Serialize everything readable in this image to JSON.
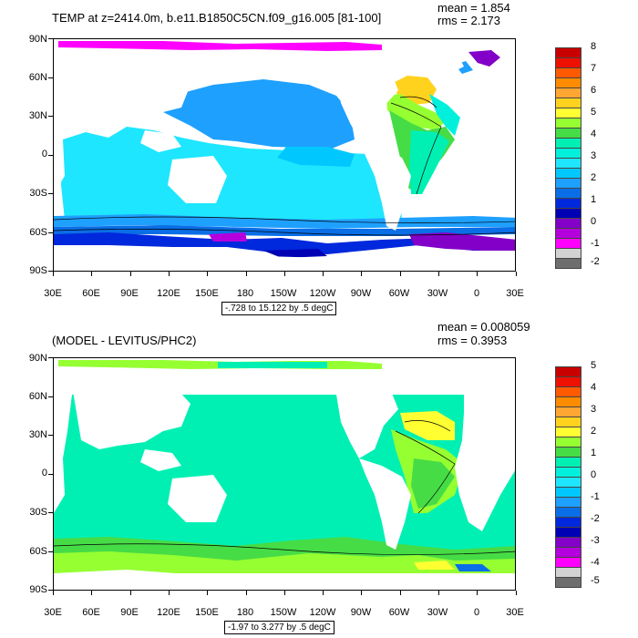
{
  "panels": [
    {
      "title": "TEMP at z=2414.0m, b.e11.B1850C5CN.f09_g16.005 [81-100]",
      "mean": "mean = 1.854",
      "rms": "rms = 2.173",
      "range": "-.728 to 15.122 by .5 degC",
      "lat_labels": [
        "90N",
        "60N",
        "30N",
        "0",
        "30S",
        "60S",
        "90S"
      ],
      "lon_labels": [
        "30E",
        "60E",
        "90E",
        "120E",
        "150E",
        "180",
        "150W",
        "120W",
        "90W",
        "60W",
        "30W",
        "0",
        "30E"
      ],
      "colorbar_labels": [
        "8",
        "7",
        "6",
        "5",
        "4",
        "3",
        "2",
        "1",
        "0",
        "-1",
        "-2"
      ],
      "colorbar_colors": [
        "#c80000",
        "#ee1000",
        "#ff5a00",
        "#ff8c00",
        "#ffa633",
        "#ffd21e",
        "#ffff32",
        "#96ff32",
        "#46dc46",
        "#00f0b4",
        "#00f0dc",
        "#1ee6ff",
        "#00c8ff",
        "#1ea0ff",
        "#0a6ee6",
        "#0028dc",
        "#0000b4",
        "#8200c8",
        "#b400dc",
        "#ff00ff",
        "#d2d2d2",
        "#6e6e6e"
      ]
    },
    {
      "title": "(MODEL - LEVITUS/PHC2)",
      "mean": "mean = 0.008059",
      "rms": "rms = 0.3953",
      "range": "-1.97 to 3.277 by .5 degC",
      "lat_labels": [
        "90N",
        "60N",
        "30N",
        "0",
        "30S",
        "60S",
        "90S"
      ],
      "lon_labels": [
        "30E",
        "60E",
        "90E",
        "120E",
        "150E",
        "180",
        "150W",
        "120W",
        "90W",
        "60W",
        "30W",
        "0",
        "30E"
      ],
      "colorbar_labels": [
        "5",
        "4",
        "3",
        "2",
        "1",
        "0",
        "-1",
        "-2",
        "-3",
        "-4",
        "-5"
      ],
      "colorbar_colors": [
        "#c80000",
        "#ee1000",
        "#ff5a00",
        "#ff8c00",
        "#ffa633",
        "#ffd21e",
        "#ffff32",
        "#96ff32",
        "#46dc46",
        "#00f0b4",
        "#00f0dc",
        "#1ee6ff",
        "#00c8ff",
        "#1ea0ff",
        "#0a6ee6",
        "#0028dc",
        "#0000b4",
        "#8200c8",
        "#b400dc",
        "#ff00ff",
        "#d2d2d2",
        "#6e6e6e"
      ]
    }
  ]
}
